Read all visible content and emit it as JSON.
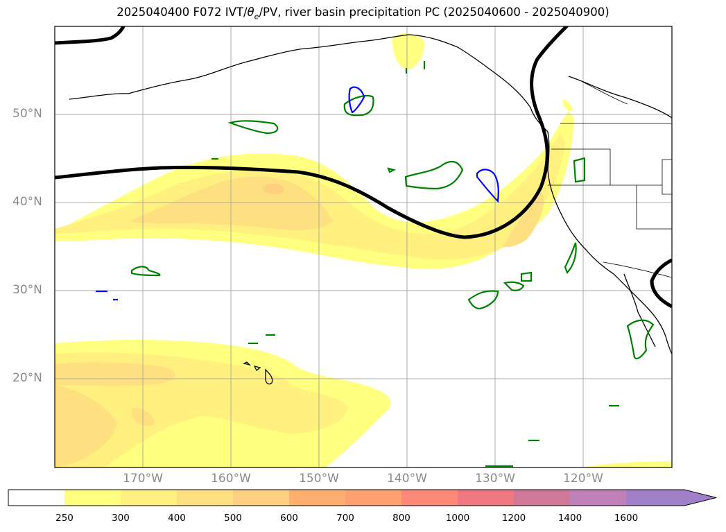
{
  "title": {
    "prefix": "2025040400 F072 IVT/",
    "theta_symbol": "θ",
    "theta_sub": "e",
    "suffix": "/PV, river basin precipitation PC (2025040600 - 2025040900)"
  },
  "axes": {
    "lat_labels": [
      "50°N",
      "40°N",
      "30°N",
      "20°N"
    ],
    "lon_labels": [
      "170°W",
      "160°W",
      "150°W",
      "140°W",
      "130°W",
      "120°W"
    ]
  },
  "colorbar": {
    "ticks": [
      "250",
      "300",
      "400",
      "500",
      "600",
      "700",
      "800",
      "1000",
      "1200",
      "1400",
      "1600"
    ],
    "colors": [
      "#ffffff",
      "#ffff80",
      "#fff080",
      "#ffe080",
      "#ffd080",
      "#ffb070",
      "#ffa070",
      "#ff8878",
      "#f07880",
      "#d07898",
      "#c080b8",
      "#a080c8"
    ],
    "extend": "max"
  },
  "contour_colors": {
    "pv_line": "#000000",
    "precip_green": "#008000",
    "precip_blue": "#0000ff",
    "coastline": "#000000"
  },
  "chart_data": {
    "type": "map",
    "lon_range": [
      -180,
      -110
    ],
    "lat_range": [
      10,
      60
    ],
    "ivt_levels": [
      250,
      300,
      400,
      500,
      600,
      700,
      800,
      1000,
      1200,
      1400,
      1600
    ],
    "ivt_max_region": {
      "lon": -155,
      "lat": 41.5,
      "value": 500
    },
    "grid": true
  }
}
